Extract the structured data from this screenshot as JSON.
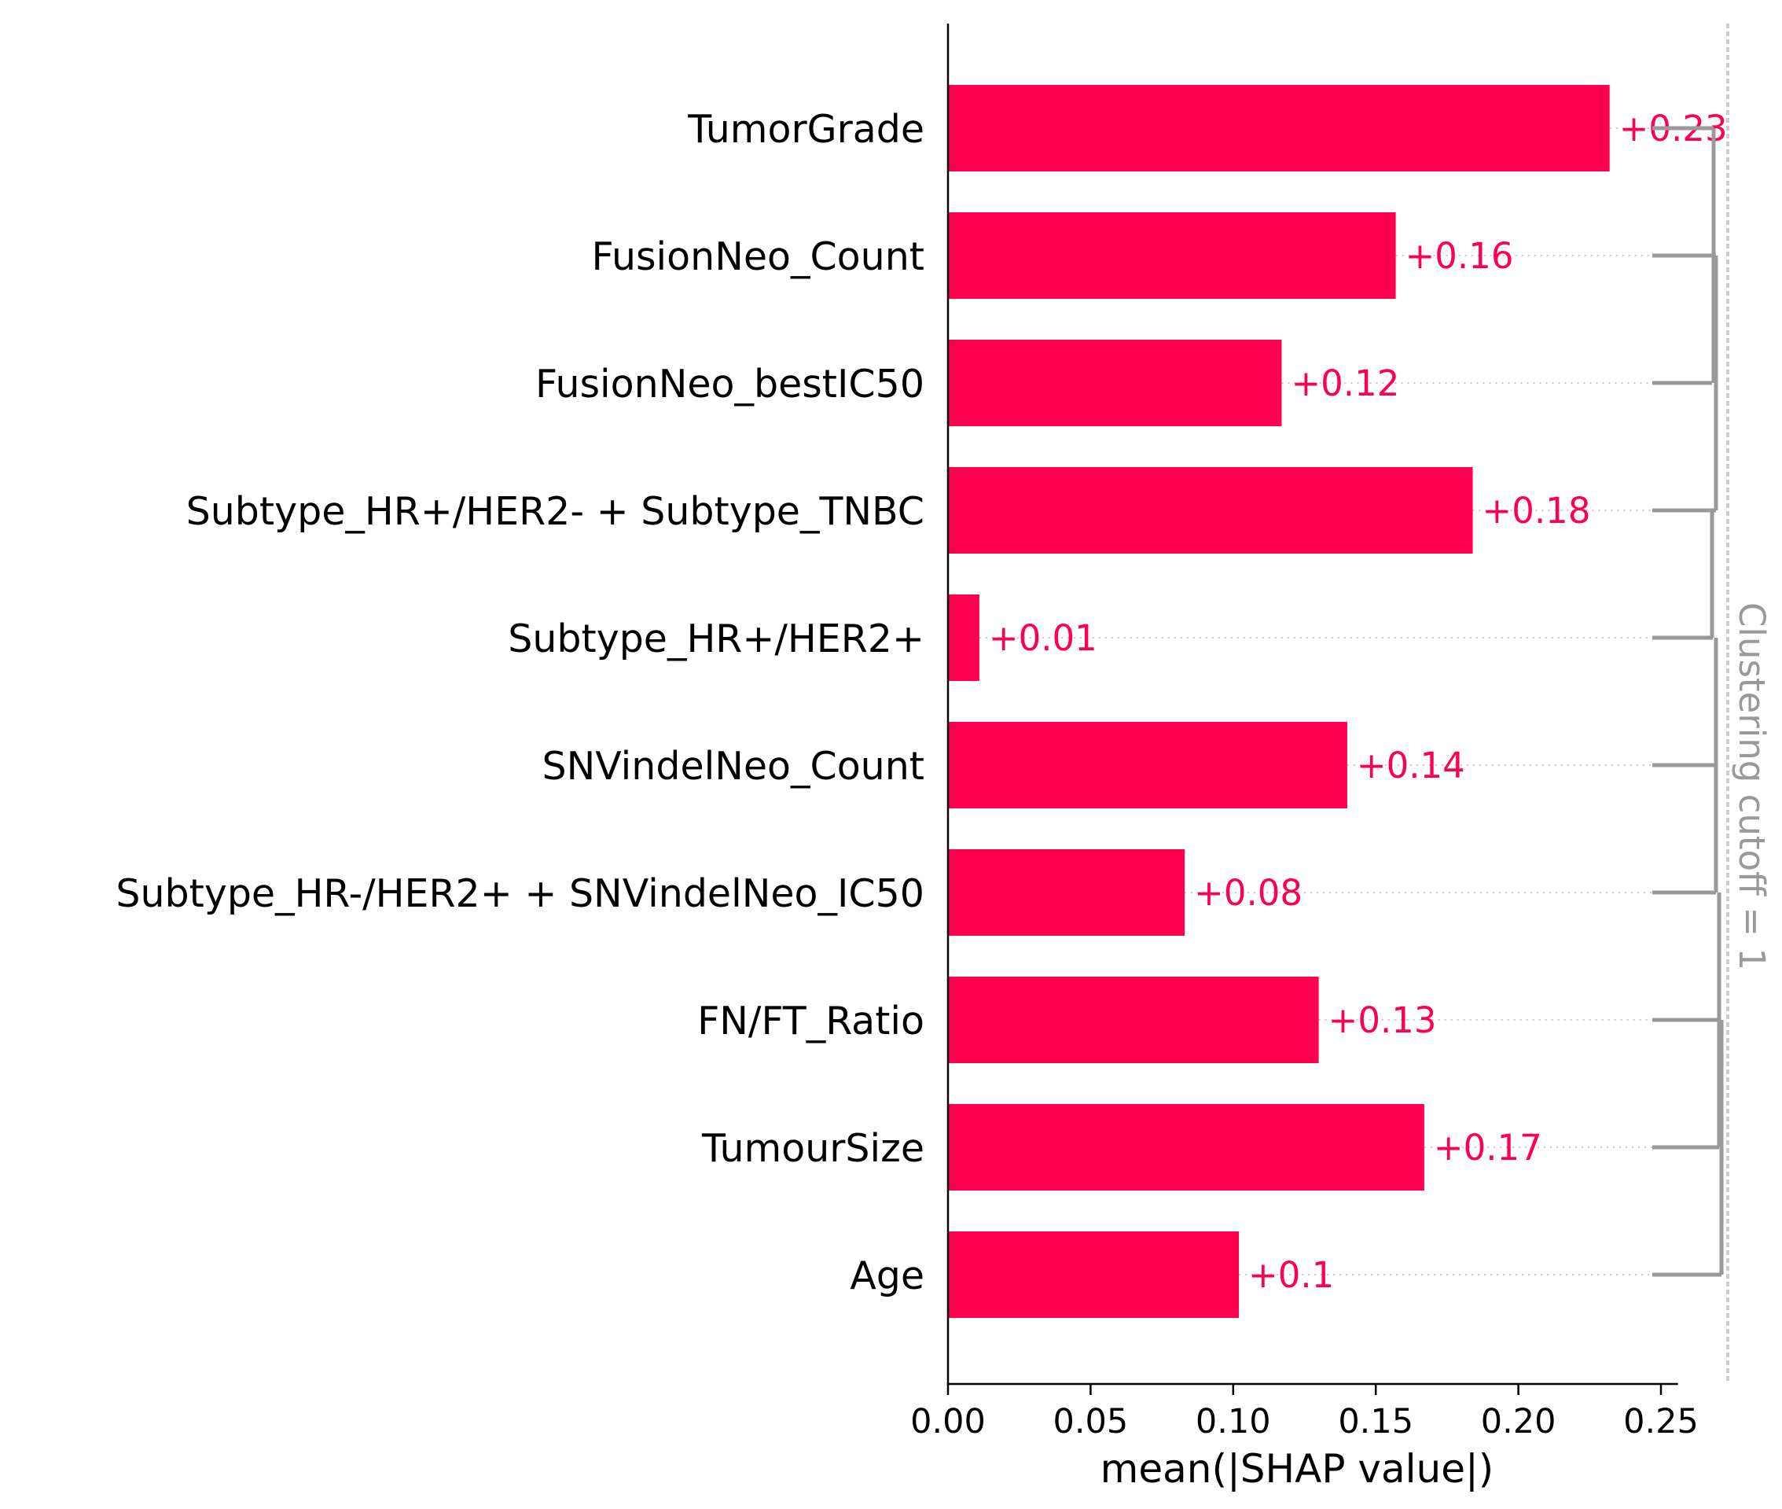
{
  "chart_data": {
    "type": "bar",
    "orientation": "horizontal",
    "categories": [
      "TumorGrade",
      "FusionNeo_Count",
      "FusionNeo_bestIC50",
      "Subtype_HR+/HER2- + Subtype_TNBC",
      "Subtype_HR+/HER2+",
      "SNVindelNeo_Count",
      "Subtype_HR-/HER2+ + SNVindelNeo_IC50",
      "FN/FT_Ratio",
      "TumourSize",
      "Age"
    ],
    "values": [
      0.232,
      0.157,
      0.117,
      0.184,
      0.011,
      0.14,
      0.083,
      0.13,
      0.167,
      0.102
    ],
    "value_labels": [
      "+0.23",
      "+0.16",
      "+0.12",
      "+0.18",
      "+0.01",
      "+0.14",
      "+0.08",
      "+0.13",
      "+0.17",
      "+0.1"
    ],
    "xlabel": "mean(|SHAP value|)",
    "xlim": [
      0,
      0.256
    ],
    "xticks": [
      "0.00",
      "0.05",
      "0.10",
      "0.15",
      "0.20",
      "0.25"
    ],
    "clustering_label": "Clustering cutoff = 1",
    "colors": {
      "bar": "#ff0051",
      "dendrogram": "#999999",
      "axis": "#000000"
    }
  }
}
